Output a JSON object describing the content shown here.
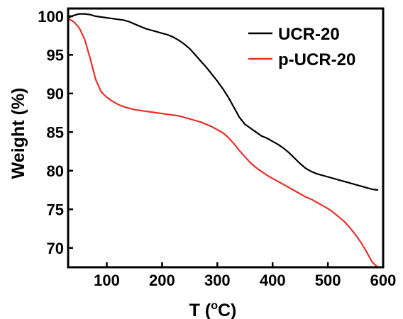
{
  "chart_data": {
    "type": "line",
    "xlabel": "T (",
    "xlabel_sup": "o",
    "xlabel_unit": "C)",
    "ylabel": "Weight (%)",
    "xlim": [
      30,
      600
    ],
    "ylim": [
      67.5,
      101
    ],
    "x_ticks": [
      100,
      200,
      300,
      400,
      500,
      600
    ],
    "x_tick_labels": [
      "100",
      "200",
      "300",
      "400",
      "500",
      "600"
    ],
    "y_ticks": [
      70,
      75,
      80,
      85,
      90,
      95,
      100
    ],
    "y_tick_labels": [
      "70",
      "75",
      "80",
      "85",
      "90",
      "95",
      "100"
    ],
    "grid": false,
    "legend_position": "top-right",
    "series": [
      {
        "name": "UCR-20",
        "color": "#000000",
        "x": [
          30,
          40,
          50,
          60,
          70,
          80,
          90,
          100,
          110,
          120,
          130,
          140,
          150,
          160,
          170,
          180,
          190,
          200,
          210,
          220,
          230,
          240,
          250,
          260,
          270,
          280,
          290,
          300,
          310,
          320,
          330,
          340,
          350,
          360,
          370,
          380,
          390,
          400,
          410,
          420,
          430,
          440,
          450,
          460,
          470,
          480,
          490,
          500,
          510,
          520,
          530,
          540,
          550,
          560,
          570,
          580,
          590
        ],
        "y": [
          99.8,
          100.1,
          100.3,
          100.3,
          100.2,
          100.0,
          99.9,
          99.8,
          99.7,
          99.6,
          99.5,
          99.3,
          99.0,
          98.7,
          98.4,
          98.2,
          98.0,
          97.8,
          97.6,
          97.3,
          96.9,
          96.4,
          95.8,
          95.0,
          94.2,
          93.4,
          92.5,
          91.6,
          90.6,
          89.5,
          88.2,
          86.9,
          86.0,
          85.5,
          85.0,
          84.5,
          84.2,
          83.8,
          83.4,
          82.9,
          82.3,
          81.6,
          80.9,
          80.3,
          79.9,
          79.6,
          79.4,
          79.2,
          79.0,
          78.8,
          78.6,
          78.4,
          78.2,
          78.0,
          77.8,
          77.6,
          77.5
        ]
      },
      {
        "name": "p-UCR-20",
        "color": "#e8312a",
        "x": [
          30,
          40,
          50,
          60,
          70,
          80,
          90,
          100,
          110,
          120,
          130,
          140,
          150,
          160,
          170,
          180,
          190,
          200,
          210,
          220,
          230,
          240,
          250,
          260,
          270,
          280,
          290,
          300,
          310,
          320,
          330,
          340,
          350,
          360,
          370,
          380,
          390,
          400,
          410,
          420,
          430,
          440,
          450,
          460,
          470,
          480,
          490,
          500,
          510,
          520,
          530,
          540,
          550,
          560,
          570,
          580,
          590
        ],
        "y": [
          99.7,
          99.3,
          98.5,
          97.0,
          94.5,
          91.8,
          90.2,
          89.5,
          89.0,
          88.6,
          88.3,
          88.1,
          87.9,
          87.8,
          87.7,
          87.6,
          87.5,
          87.4,
          87.3,
          87.2,
          87.1,
          86.9,
          86.7,
          86.5,
          86.3,
          86.0,
          85.7,
          85.3,
          84.9,
          84.3,
          83.5,
          82.6,
          81.8,
          81.0,
          80.4,
          79.9,
          79.4,
          79.0,
          78.6,
          78.2,
          77.8,
          77.4,
          77.0,
          76.6,
          76.3,
          75.9,
          75.5,
          75.1,
          74.6,
          74.0,
          73.4,
          72.6,
          71.7,
          70.7,
          69.5,
          68.2,
          67.5
        ]
      }
    ]
  }
}
